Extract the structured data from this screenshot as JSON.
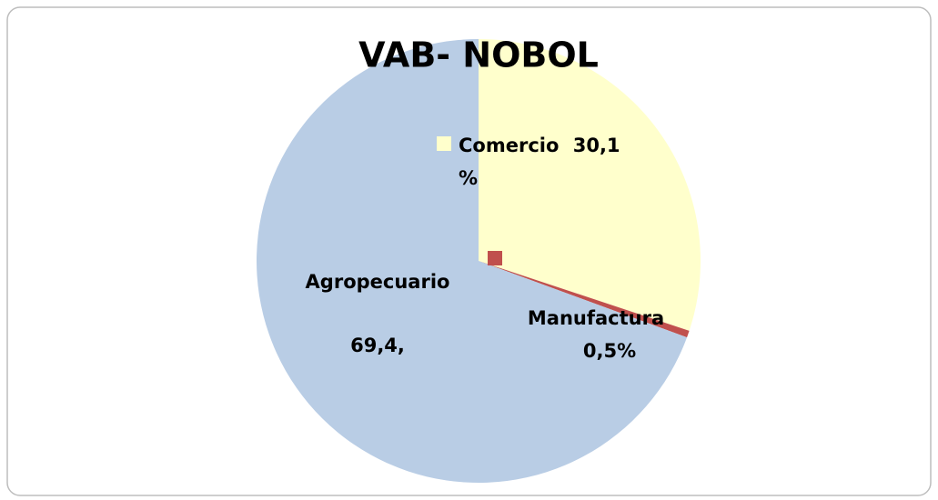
{
  "chart_data": {
    "type": "pie",
    "title": "VAB- NOBOL",
    "categories": [
      "Comercio",
      "Manufactura",
      "Agropecuario"
    ],
    "values": [
      30.1,
      0.5,
      69.4
    ],
    "value_labels": [
      "30,1 %",
      "0,5%",
      "69,4,"
    ],
    "colors": [
      "#FFFFCC",
      "#C0504D",
      "#B9CDE5"
    ]
  }
}
